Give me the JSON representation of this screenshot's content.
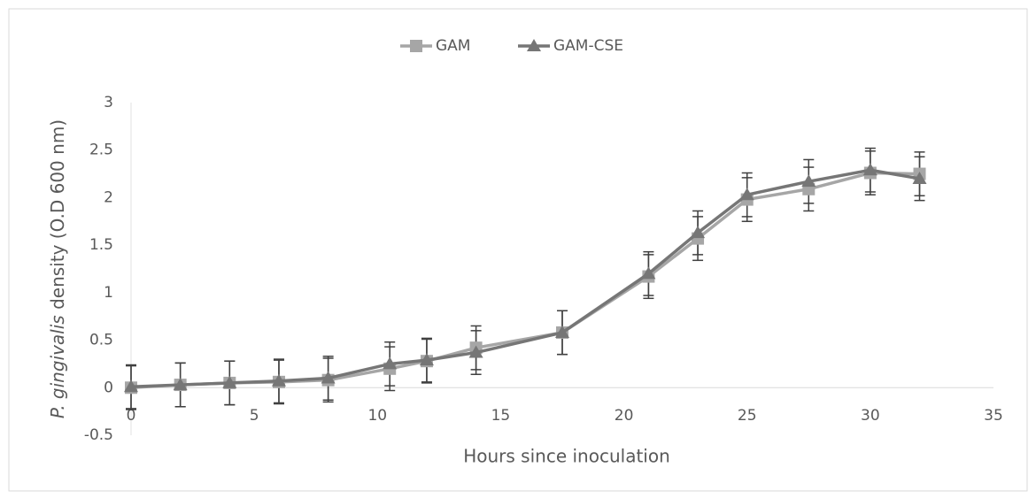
{
  "chart_data": {
    "type": "line",
    "x_label": "Hours since inoculation",
    "y_label": {
      "italic": "P. gingivalis",
      "rest": " density (O.D 600 nm)"
    },
    "x": [
      0,
      2,
      4,
      6,
      8,
      10.5,
      12,
      14,
      17.5,
      21,
      23,
      25,
      27.5,
      30,
      32
    ],
    "series": [
      {
        "name": "GAM",
        "color": "#a6a6a6",
        "marker": "square",
        "values": [
          0,
          0.03,
          0.05,
          0.06,
          0.08,
          0.2,
          0.28,
          0.42,
          0.58,
          1.17,
          1.57,
          1.98,
          2.09,
          2.26,
          2.25
        ],
        "errors": [
          0.23,
          0.23,
          0.23,
          0.23,
          0.23,
          0.23,
          0.23,
          0.23,
          0.23,
          0.23,
          0.23,
          0.23,
          0.23,
          0.23,
          0.23
        ]
      },
      {
        "name": "GAM-CSE",
        "color": "#767676",
        "marker": "triangle",
        "values": [
          0.01,
          0.03,
          0.05,
          0.07,
          0.1,
          0.25,
          0.29,
          0.37,
          0.58,
          1.2,
          1.63,
          2.03,
          2.17,
          2.29,
          2.2
        ],
        "errors": [
          0.23,
          0.23,
          0.23,
          0.23,
          0.23,
          0.23,
          0.23,
          0.23,
          0.23,
          0.23,
          0.23,
          0.23,
          0.23,
          0.23,
          0.23
        ]
      }
    ],
    "xlim": [
      0,
      35
    ],
    "xticks": [
      0,
      5,
      10,
      15,
      20,
      25,
      30,
      35
    ],
    "ylim": [
      -0.5,
      3
    ],
    "yticks": [
      -0.5,
      0,
      0.5,
      1,
      1.5,
      2,
      2.5,
      3
    ],
    "legend": "top",
    "grid": false
  }
}
